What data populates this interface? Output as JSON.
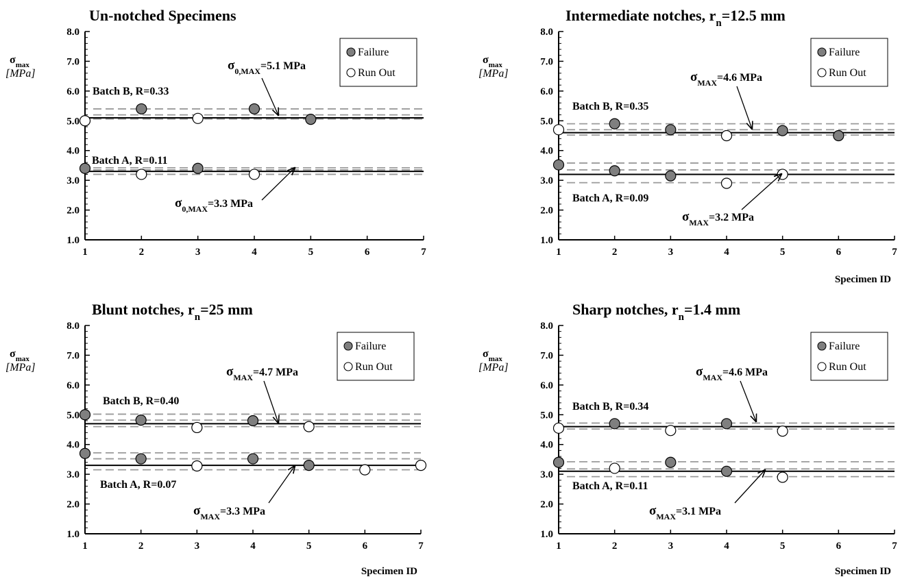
{
  "legend": {
    "failure": "Failure",
    "runout": "Run Out"
  },
  "style": {
    "failure_fill": "#7f7f7f",
    "runout_fill": "#ffffff",
    "band_color": "#9a9a9a",
    "mean_color": "#000000"
  },
  "chart_data": [
    {
      "type": "scatter",
      "title": "Un-notched Specimens",
      "ylabel_main": "σmax",
      "ylabel_unit": "[MPa]",
      "xlabel": "",
      "xlim": [
        1,
        7
      ],
      "ylim": [
        1.0,
        8.0
      ],
      "x_ticks": [
        "1",
        "2",
        "3",
        "4",
        "5",
        "6",
        "7"
      ],
      "y_ticks": [
        "1.0",
        "2.0",
        "3.0",
        "4.0",
        "5.0",
        "6.0",
        "7.0",
        "8.0"
      ],
      "series": [
        {
          "name": "Failure",
          "points": [
            [
              1,
              3.4
            ],
            [
              2,
              5.4
            ],
            [
              3,
              3.4
            ],
            [
              4,
              5.4
            ],
            [
              5,
              5.05
            ]
          ]
        },
        {
          "name": "Run Out",
          "points": [
            [
              1,
              5.0
            ],
            [
              2,
              3.2
            ],
            [
              3,
              5.08
            ],
            [
              4,
              3.2
            ]
          ]
        }
      ],
      "bands": [
        {
          "label": "Batch B, R=0.33",
          "mean": 5.1,
          "dashed": [
            5.4,
            5.06,
            5.2
          ]
        },
        {
          "label": "Batch A, R=0.11",
          "mean": 3.3,
          "dashed": [
            3.42,
            3.35,
            3.2
          ]
        }
      ],
      "annotations": [
        {
          "sym": "σ",
          "sub": "0,MAX",
          "rest": "=5.1 MPa",
          "mean": 5.1
        },
        {
          "sym": "σ",
          "sub": "0,MAX",
          "rest": "=3.3 MPa",
          "mean": 3.3
        }
      ]
    },
    {
      "type": "scatter",
      "title": "Intermediate notches, r",
      "title_sub": "n",
      "title_rest": "=12.5 mm",
      "ylabel_main": "σmax",
      "ylabel_unit": "[MPa]",
      "xlabel": "Specimen ID",
      "xlim": [
        1,
        7
      ],
      "ylim": [
        1.0,
        8.0
      ],
      "x_ticks": [
        "1",
        "2",
        "3",
        "4",
        "5",
        "6",
        "7"
      ],
      "y_ticks": [
        "1.0",
        "2.0",
        "3.0",
        "4.0",
        "5.0",
        "6.0",
        "7.0",
        "8.0"
      ],
      "series": [
        {
          "name": "Failure",
          "points": [
            [
              1,
              3.52
            ],
            [
              2,
              4.9
            ],
            [
              2,
              3.32
            ],
            [
              3,
              4.7
            ],
            [
              3,
              3.15
            ],
            [
              5,
              4.67
            ],
            [
              6,
              4.5
            ]
          ]
        },
        {
          "name": "Run Out",
          "points": [
            [
              1,
              4.7
            ],
            [
              4,
              4.5
            ],
            [
              4,
              2.9
            ],
            [
              5,
              3.2
            ]
          ]
        }
      ],
      "bands": [
        {
          "label": "Batch B, R=0.35",
          "mean": 4.6,
          "dashed": [
            4.9,
            4.7,
            4.52
          ]
        },
        {
          "label": "Batch A, R=0.09",
          "mean": 3.2,
          "dashed": [
            3.58,
            3.35,
            2.92
          ]
        }
      ],
      "annotations": [
        {
          "sym": "σ",
          "sub": "MAX",
          "rest": "=4.6 MPa",
          "mean": 4.6
        },
        {
          "sym": "σ",
          "sub": "MAX",
          "rest": "=3.2 MPa",
          "mean": 3.2
        }
      ]
    },
    {
      "type": "scatter",
      "title": "Blunt notches, r",
      "title_sub": "n",
      "title_rest": "=25 mm",
      "ylabel_main": "σmax",
      "ylabel_unit": "[MPa]",
      "xlabel": "Specimen ID",
      "xlim": [
        1,
        7
      ],
      "ylim": [
        1.0,
        8.0
      ],
      "x_ticks": [
        "1",
        "2",
        "3",
        "4",
        "5",
        "6",
        "7"
      ],
      "y_ticks": [
        "1.0",
        "2.0",
        "3.0",
        "4.0",
        "5.0",
        "6.0",
        "7.0",
        "8.0"
      ],
      "series": [
        {
          "name": "Failure",
          "points": [
            [
              1,
              5.0
            ],
            [
              1,
              3.7
            ],
            [
              2,
              4.82
            ],
            [
              2,
              3.52
            ],
            [
              4,
              4.8
            ],
            [
              4,
              3.52
            ],
            [
              5,
              3.3
            ]
          ]
        },
        {
          "name": "Run Out",
          "points": [
            [
              3,
              4.57
            ],
            [
              5,
              4.6
            ],
            [
              3,
              3.28
            ],
            [
              6,
              3.15
            ],
            [
              7,
              3.3
            ]
          ]
        }
      ],
      "bands": [
        {
          "label": "Batch B, R=0.40",
          "mean": 4.7,
          "dashed": [
            5.02,
            4.82,
            4.6
          ]
        },
        {
          "label": "Batch A, R=0.07",
          "mean": 3.3,
          "dashed": [
            3.72,
            3.52,
            3.15
          ]
        }
      ],
      "annotations": [
        {
          "sym": "σ",
          "sub": "MAX",
          "rest": "=4.7 MPa",
          "mean": 4.7
        },
        {
          "sym": "σ",
          "sub": "MAX",
          "rest": "=3.3 MPa",
          "mean": 3.3
        }
      ]
    },
    {
      "type": "scatter",
      "title": "Sharp notches, r",
      "title_sub": "n",
      "title_rest": "=1.4 mm",
      "ylabel_main": "σmax",
      "ylabel_unit": "[MPa]",
      "xlabel": "Specimen ID",
      "xlim": [
        1,
        7
      ],
      "ylim": [
        1.0,
        8.0
      ],
      "x_ticks": [
        "1",
        "2",
        "3",
        "4",
        "5",
        "6",
        "7"
      ],
      "y_ticks": [
        "1.0",
        "2.0",
        "3.0",
        "4.0",
        "5.0",
        "6.0",
        "7.0",
        "8.0"
      ],
      "series": [
        {
          "name": "Failure",
          "points": [
            [
              1,
              3.4
            ],
            [
              2,
              4.7
            ],
            [
              3,
              3.4
            ],
            [
              4,
              4.7
            ],
            [
              4,
              3.1
            ]
          ]
        },
        {
          "name": "Run Out",
          "points": [
            [
              1,
              4.55
            ],
            [
              2,
              3.2
            ],
            [
              3,
              4.47
            ],
            [
              5,
              4.45
            ],
            [
              5,
              2.9
            ]
          ]
        }
      ],
      "bands": [
        {
          "label": "Batch B, R=0.34",
          "mean": 4.6,
          "dashed": [
            4.72,
            4.52
          ]
        },
        {
          "label": "Batch A, R=0.11",
          "mean": 3.1,
          "dashed": [
            3.42,
            3.18,
            2.92
          ]
        }
      ],
      "annotations": [
        {
          "sym": "σ",
          "sub": "MAX",
          "rest": "=4.6 MPa",
          "mean": 4.6
        },
        {
          "sym": "σ",
          "sub": "MAX",
          "rest": "=3.1 MPa",
          "mean": 3.1
        }
      ]
    }
  ]
}
